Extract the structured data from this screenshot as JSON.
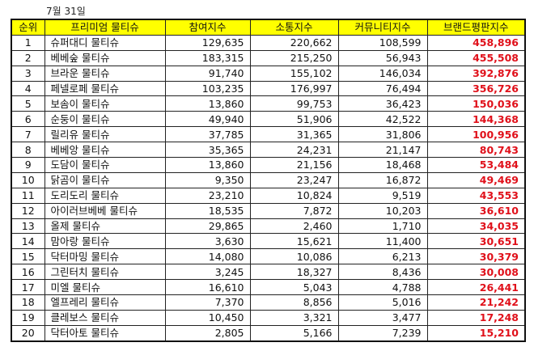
{
  "date_label": "7월 31일",
  "table": {
    "headers": [
      "순위",
      "프리미엄 물티슈",
      "참여지수",
      "소통지수",
      "커뮤니티지수",
      "브랜드평판지수"
    ],
    "accent_header_bg": "#ffff00",
    "accent_total_color": "#e0101a",
    "rows": [
      {
        "rank": "1",
        "name": "슈퍼대디 물티슈",
        "participation": "129,635",
        "communication": "220,662",
        "community": "108,599",
        "total": "458,896"
      },
      {
        "rank": "2",
        "name": "베베숲 물티슈",
        "participation": "183,315",
        "communication": "215,250",
        "community": "56,943",
        "total": "455,508"
      },
      {
        "rank": "3",
        "name": "브라운 물티슈",
        "participation": "91,740",
        "communication": "155,102",
        "community": "146,034",
        "total": "392,876"
      },
      {
        "rank": "4",
        "name": "페넬로페 물티슈",
        "participation": "103,235",
        "communication": "176,997",
        "community": "76,494",
        "total": "356,726"
      },
      {
        "rank": "5",
        "name": "보솜이 물티슈",
        "participation": "13,860",
        "communication": "99,753",
        "community": "36,423",
        "total": "150,036"
      },
      {
        "rank": "6",
        "name": "순둥이 물티슈",
        "participation": "49,940",
        "communication": "51,906",
        "community": "42,522",
        "total": "144,368"
      },
      {
        "rank": "7",
        "name": "릴리유 물티슈",
        "participation": "37,785",
        "communication": "31,365",
        "community": "31,806",
        "total": "100,956"
      },
      {
        "rank": "8",
        "name": "베베앙 물티슈",
        "participation": "35,365",
        "communication": "24,231",
        "community": "21,147",
        "total": "80,743"
      },
      {
        "rank": "9",
        "name": "도담이 물티슈",
        "participation": "13,860",
        "communication": "21,156",
        "community": "18,468",
        "total": "53,484"
      },
      {
        "rank": "10",
        "name": "닭곰이 물티슈",
        "participation": "9,350",
        "communication": "23,247",
        "community": "16,872",
        "total": "49,469"
      },
      {
        "rank": "11",
        "name": "도리도리 물티슈",
        "participation": "23,210",
        "communication": "10,824",
        "community": "9,519",
        "total": "43,553"
      },
      {
        "rank": "12",
        "name": "아이러브베베 물티슈",
        "participation": "18,535",
        "communication": "7,872",
        "community": "10,203",
        "total": "36,610"
      },
      {
        "rank": "13",
        "name": "올제 물티슈",
        "participation": "29,865",
        "communication": "2,460",
        "community": "1,710",
        "total": "34,035"
      },
      {
        "rank": "14",
        "name": "맘아랑 물티슈",
        "participation": "3,630",
        "communication": "15,621",
        "community": "11,400",
        "total": "30,651"
      },
      {
        "rank": "15",
        "name": "닥터마밍 물티슈",
        "participation": "14,080",
        "communication": "10,086",
        "community": "6,213",
        "total": "30,379"
      },
      {
        "rank": "16",
        "name": "그린터치 물티슈",
        "participation": "3,245",
        "communication": "18,327",
        "community": "8,436",
        "total": "30,008"
      },
      {
        "rank": "17",
        "name": "미엘 물티슈",
        "participation": "16,610",
        "communication": "5,043",
        "community": "4,788",
        "total": "26,441"
      },
      {
        "rank": "18",
        "name": "엘프레리 물티슈",
        "participation": "7,370",
        "communication": "8,856",
        "community": "5,016",
        "total": "21,242"
      },
      {
        "rank": "19",
        "name": "클레보스 물티슈",
        "participation": "10,450",
        "communication": "3,321",
        "community": "3,477",
        "total": "17,248"
      },
      {
        "rank": "20",
        "name": "닥터아토 물티슈",
        "participation": "2,805",
        "communication": "5,166",
        "community": "7,239",
        "total": "15,210"
      }
    ]
  }
}
